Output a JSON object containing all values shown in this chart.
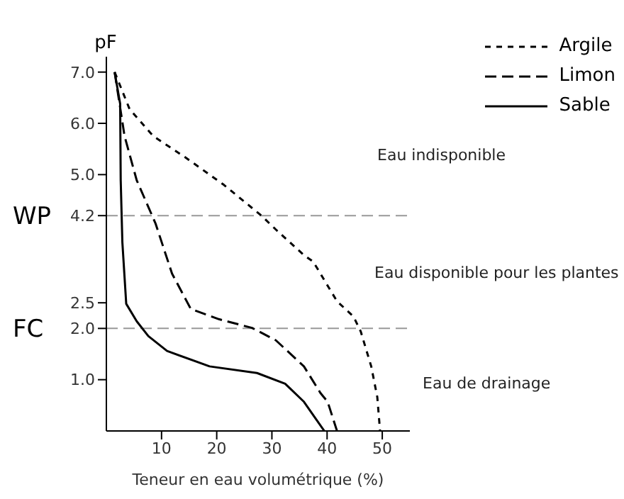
{
  "chart_data": {
    "type": "line",
    "xlabel": "Teneur en eau volumétrique (%)",
    "ylabel": "pF",
    "xlim": [
      0,
      55
    ],
    "xticks": [
      10,
      20,
      30,
      40,
      50
    ],
    "ylim": [
      0,
      7.3
    ],
    "yticks": [
      {
        "value": 1,
        "label": "1.0"
      },
      {
        "value": 2,
        "label": "2.0"
      },
      {
        "value": 2.5,
        "label": "2.5"
      },
      {
        "value": 4.2,
        "label": "4.2"
      },
      {
        "value": 5,
        "label": "5.0"
      },
      {
        "value": 6,
        "label": "6.0"
      },
      {
        "value": 7,
        "label": "7.0"
      }
    ],
    "series": [
      {
        "name": "Argile",
        "color": "#000000",
        "line_style": "dashed",
        "x": [
          1.5,
          4.2,
          8.5,
          14.4,
          21.3,
          28.1,
          30.7,
          35.8,
          37.5,
          41.8,
          44.8,
          46.1,
          48,
          49.1,
          49.6
        ],
        "values": [
          7,
          6.28,
          5.75,
          5.33,
          4.8,
          4.2,
          3.93,
          3.43,
          3.3,
          2.53,
          2.23,
          1.94,
          1.26,
          0.66,
          0
        ]
      },
      {
        "name": "Limon",
        "color": "#000000",
        "line_style": "dashed",
        "x": [
          1.5,
          3.3,
          5.5,
          8.9,
          11.9,
          15.3,
          20.4,
          26.4,
          30.7,
          35.8,
          38.8,
          40.1,
          41.8
        ],
        "values": [
          7,
          5.75,
          4.89,
          4.05,
          3.07,
          2.38,
          2.18,
          2.01,
          1.77,
          1.26,
          0.74,
          0.57,
          0
        ]
      },
      {
        "name": "Sable",
        "color": "#000000",
        "line_style": "solid",
        "x": [
          1.5,
          2.5,
          2.6,
          2.9,
          3.6,
          5.5,
          7.6,
          11,
          18.7,
          27.3,
          32.4,
          35.8,
          38,
          39.5
        ],
        "values": [
          7,
          6.38,
          4.89,
          3.68,
          2.48,
          2.14,
          1.85,
          1.56,
          1.26,
          1.13,
          0.92,
          0.57,
          0.23,
          0
        ]
      }
    ],
    "ref_lines": [
      {
        "axis": "y",
        "value": 4.2,
        "label": "WP",
        "color": "#999999",
        "line_style": "dashed"
      },
      {
        "axis": "y",
        "value": 2,
        "label": "FC",
        "color": "#999999",
        "line_style": "dashed"
      }
    ],
    "annotations": [
      "Eau indisponible",
      "Eau disponible pour les plantes",
      "Eau de drainage"
    ],
    "legend": "top right",
    "grid": false,
    "marker": "none"
  }
}
